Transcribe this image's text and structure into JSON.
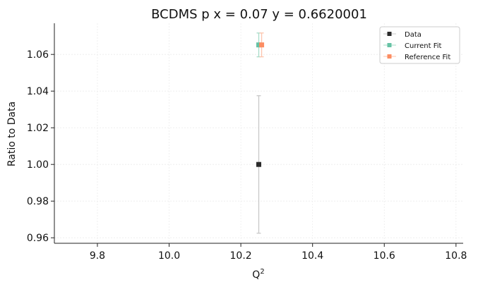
{
  "chart_data": {
    "type": "scatter",
    "title": "BCDMS p x = 0.07 y = 0.6620001",
    "xlabel": "Q",
    "xlabel_sup": "2",
    "ylabel": "Ratio to Data",
    "xlim": [
      9.68,
      10.82
    ],
    "ylim": [
      0.957,
      1.077
    ],
    "xticks": [
      9.8,
      10.0,
      10.2,
      10.4,
      10.6,
      10.8
    ],
    "xtick_labels": [
      "9.8",
      "10.0",
      "10.2",
      "10.4",
      "10.6",
      "10.8"
    ],
    "yticks": [
      0.96,
      0.98,
      1.0,
      1.02,
      1.04,
      1.06
    ],
    "ytick_labels": [
      "0.96",
      "0.98",
      "1.00",
      "1.02",
      "1.04",
      "1.06"
    ],
    "grid": true,
    "legend_position": "top-right",
    "series": [
      {
        "name": "Data",
        "color": "#2b2b2b",
        "x": [
          10.25
        ],
        "y": [
          1.0
        ],
        "yerr": [
          0.0375
        ],
        "errcolor": "#c8c8c8"
      },
      {
        "name": "Current Fit",
        "color": "#66c2a5",
        "x": [
          10.25
        ],
        "y": [
          1.0652
        ],
        "yerr": [
          0.0065
        ],
        "errcolor": "#a8dcc9"
      },
      {
        "name": "Reference Fit",
        "color": "#fc8d62",
        "x": [
          10.258
        ],
        "y": [
          1.0652
        ],
        "yerr": [
          0.0065
        ],
        "errcolor": "#fdc4ac"
      }
    ]
  }
}
